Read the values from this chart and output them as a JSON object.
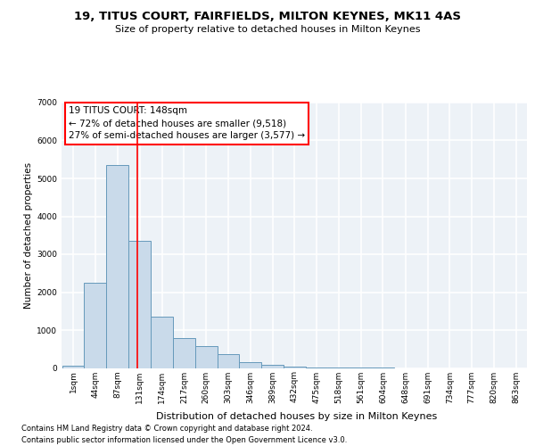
{
  "title1": "19, TITUS COURT, FAIRFIELDS, MILTON KEYNES, MK11 4AS",
  "title2": "Size of property relative to detached houses in Milton Keynes",
  "xlabel": "Distribution of detached houses by size in Milton Keynes",
  "ylabel": "Number of detached properties",
  "footnote1": "Contains HM Land Registry data © Crown copyright and database right 2024.",
  "footnote2": "Contains public sector information licensed under the Open Government Licence v3.0.",
  "annotation_line1": "19 TITUS COURT: 148sqm",
  "annotation_line2": "← 72% of detached houses are smaller (9,518)",
  "annotation_line3": "27% of semi-detached houses are larger (3,577) →",
  "bar_color": "#c9daea",
  "bar_edge_color": "#6699bb",
  "red_line_x": 148,
  "categories": [
    "1sqm",
    "44sqm",
    "87sqm",
    "131sqm",
    "174sqm",
    "217sqm",
    "260sqm",
    "303sqm",
    "346sqm",
    "389sqm",
    "432sqm",
    "475sqm",
    "518sqm",
    "561sqm",
    "604sqm",
    "648sqm",
    "691sqm",
    "734sqm",
    "777sqm",
    "820sqm",
    "863sqm"
  ],
  "bin_starts": [
    1,
    44,
    87,
    131,
    174,
    217,
    260,
    303,
    346,
    389,
    432,
    475,
    518,
    561,
    604,
    648,
    691,
    734,
    777,
    820,
    863
  ],
  "bin_width": 43,
  "values": [
    55,
    2250,
    5350,
    3350,
    1350,
    800,
    580,
    370,
    145,
    90,
    45,
    12,
    4,
    2,
    1,
    0,
    0,
    0,
    0,
    0,
    0
  ],
  "ylim": [
    0,
    7000
  ],
  "yticks": [
    0,
    1000,
    2000,
    3000,
    4000,
    5000,
    6000,
    7000
  ],
  "xmin": 1,
  "xmax": 906,
  "bg_color": "#edf2f7",
  "grid_color": "#ffffff",
  "title1_fontsize": 9.5,
  "title2_fontsize": 8,
  "ylabel_fontsize": 7.5,
  "xlabel_fontsize": 8,
  "tick_fontsize": 6.5,
  "footnote_fontsize": 6
}
